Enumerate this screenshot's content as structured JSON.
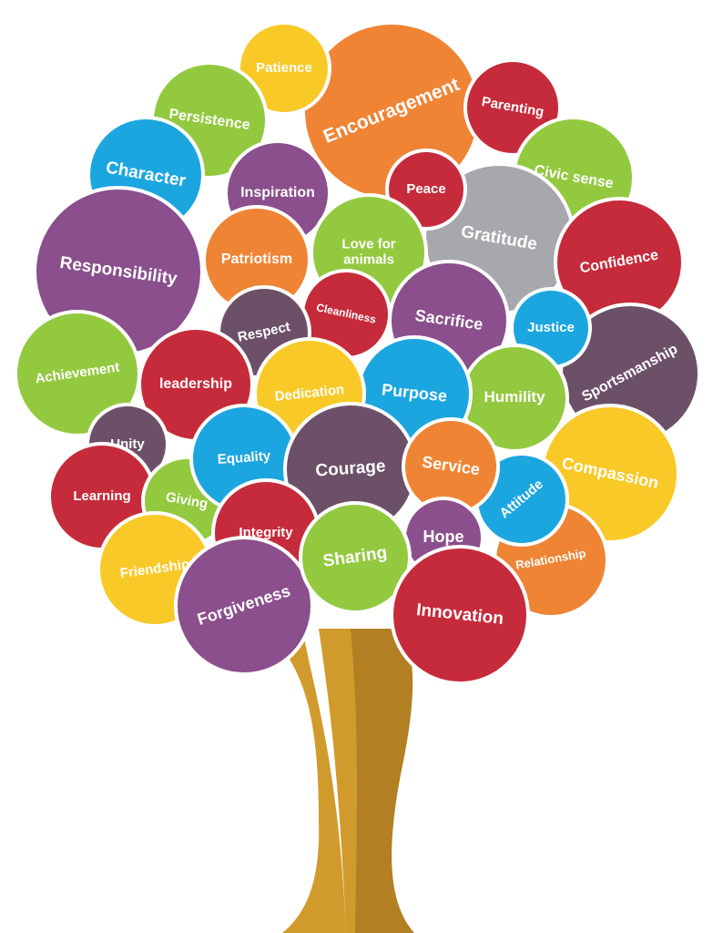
{
  "colors": {
    "orange": "#ef8435",
    "yellow": "#f9c928",
    "green": "#93c93f",
    "purple": "#8a4f8c",
    "blue": "#1ba6e0",
    "red": "#c62b3b",
    "grey": "#a6a8ab",
    "plum": "#6c5068",
    "trunk_light": "#d19a2c",
    "trunk_dark": "#b27f22"
  },
  "bubbles": [
    {
      "label": "Encouragement",
      "color": "orange"
    },
    {
      "label": "Patience",
      "color": "yellow"
    },
    {
      "label": "Persistence",
      "color": "green"
    },
    {
      "label": "Character",
      "color": "blue"
    },
    {
      "label": "Inspiration",
      "color": "purple"
    },
    {
      "label": "Patriotism",
      "color": "orange"
    },
    {
      "label": "Responsibility",
      "color": "purple"
    },
    {
      "label": "Parenting",
      "color": "red"
    },
    {
      "label": "Civic sense",
      "color": "green"
    },
    {
      "label": "Gratitude",
      "color": "grey"
    },
    {
      "label": "Peace",
      "color": "red"
    },
    {
      "label": "Love for|animals",
      "color": "green"
    },
    {
      "label": "Confidence",
      "color": "red"
    },
    {
      "label": "Sportsmanship",
      "color": "plum"
    },
    {
      "label": "Justice",
      "color": "blue"
    },
    {
      "label": "Sacrifice",
      "color": "purple"
    },
    {
      "label": "Cleanliness",
      "color": "red"
    },
    {
      "label": "Respect",
      "color": "plum"
    },
    {
      "label": "Achievement",
      "color": "green"
    },
    {
      "label": "leadership",
      "color": "red"
    },
    {
      "label": "Compassion",
      "color": "yellow"
    },
    {
      "label": "Humility",
      "color": "green"
    },
    {
      "label": "Purpose",
      "color": "blue"
    },
    {
      "label": "Dedication",
      "color": "yellow"
    },
    {
      "label": "Unity",
      "color": "plum"
    },
    {
      "label": "Learning",
      "color": "red"
    },
    {
      "label": "Giving",
      "color": "green"
    },
    {
      "label": "Equality",
      "color": "blue"
    },
    {
      "label": "Courage",
      "color": "plum"
    },
    {
      "label": "Relationship",
      "color": "orange"
    },
    {
      "label": "Attitude",
      "color": "blue"
    },
    {
      "label": "Service",
      "color": "orange"
    },
    {
      "label": "Hope",
      "color": "purple"
    },
    {
      "label": "Integrity",
      "color": "red"
    },
    {
      "label": "Friendship",
      "color": "yellow"
    },
    {
      "label": "Forgiveness",
      "color": "purple"
    },
    {
      "label": "Sharing",
      "color": "green"
    },
    {
      "label": "Innovation",
      "color": "red"
    }
  ]
}
